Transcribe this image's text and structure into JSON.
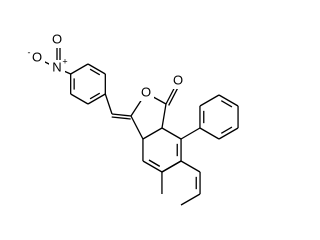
{
  "atoms": [
    {
      "label": "O"
    },
    {
      "label": "O",
      "charge": "-"
    },
    {
      "label": "N",
      "charge": "+"
    },
    {
      "label": "O"
    },
    {
      "label": "O"
    }
  ]
}
